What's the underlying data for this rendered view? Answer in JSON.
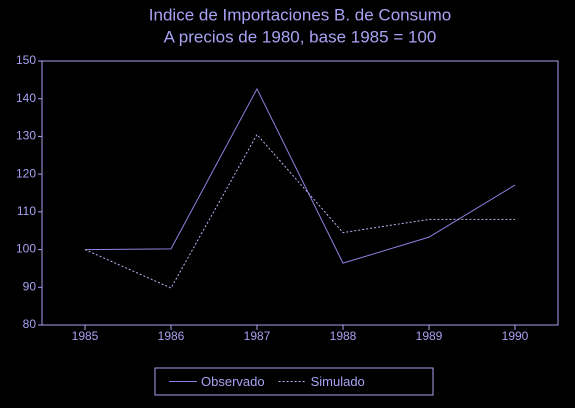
{
  "chart_data": {
    "type": "line",
    "title": "Indice de Importaciones B. de Consumo",
    "subtitle": "A precios de 1980, base 1985 = 100",
    "categories": [
      "1985",
      "1986",
      "1987",
      "1988",
      "1989",
      "1990"
    ],
    "series": [
      {
        "name": "Observado",
        "color": "#8c84e0",
        "values": [
          100,
          100.2,
          142.6,
          96.4,
          103.3,
          117.1
        ]
      },
      {
        "name": "Simulado",
        "color": "#b8b2f5",
        "values": [
          100,
          89.8,
          130.5,
          104.5,
          108,
          108
        ]
      }
    ],
    "ylim": [
      80,
      150
    ],
    "yticks": [
      80,
      90,
      100,
      110,
      120,
      130,
      140,
      150
    ],
    "legend": "bottom"
  }
}
